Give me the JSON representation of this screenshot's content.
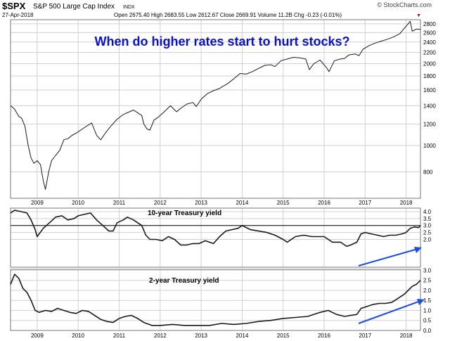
{
  "header": {
    "symbol": "$SPX",
    "name": "S&P 500 Large Cap Index",
    "exchange": "INDX",
    "date": "27-Apr-2018",
    "quote": "Open 2675.40  High 2683.55  Low 2612.67  Close 2669.91  Volume 11.2B  Chg -0.23 (-0.01%)",
    "quote_arrow": "▼",
    "watermark": "© StockCharts.com"
  },
  "colors": {
    "price": "#1a1a1a",
    "annotation": "#0a10c8",
    "arrow": "#1f4fd8",
    "grid": "#d0d0d0",
    "border": "#777777"
  },
  "chart_data": [
    {
      "type": "line",
      "annotation": "When do higher rates start to hurt stocks?",
      "y_scale": "log",
      "ylim": [
        640,
        2900
      ],
      "xlim": [
        2008.35,
        2018.35
      ],
      "y_ticks": [
        800,
        1000,
        1200,
        1400,
        1600,
        1800,
        2000,
        2200,
        2400,
        2600,
        2800
      ],
      "x_ticks": [
        "2009",
        "2010",
        "2011",
        "2012",
        "2013",
        "2014",
        "2015",
        "2016",
        "2017",
        "2018"
      ],
      "grid": true,
      "series": [
        {
          "x": [
            2008.35,
            2008.45,
            2008.55,
            2008.62,
            2008.7,
            2008.78,
            2008.85,
            2008.92,
            2009.0,
            2009.08,
            2009.15,
            2009.2,
            2009.28,
            2009.35,
            2009.45,
            2009.55,
            2009.65,
            2009.75,
            2009.85,
            2009.95,
            2010.1,
            2010.25,
            2010.33,
            2010.45,
            2010.55,
            2010.68,
            2010.8,
            2010.95,
            2011.1,
            2011.25,
            2011.35,
            2011.45,
            2011.55,
            2011.6,
            2011.68,
            2011.75,
            2011.85,
            2011.95,
            2012.1,
            2012.25,
            2012.4,
            2012.5,
            2012.65,
            2012.8,
            2012.88,
            2013.0,
            2013.15,
            2013.3,
            2013.45,
            2013.5,
            2013.65,
            2013.8,
            2013.95,
            2014.1,
            2014.25,
            2014.4,
            2014.55,
            2014.7,
            2014.8,
            2014.95,
            2015.1,
            2015.25,
            2015.4,
            2015.55,
            2015.64,
            2015.75,
            2015.9,
            2016.05,
            2016.12,
            2016.25,
            2016.4,
            2016.5,
            2016.6,
            2016.75,
            2016.85,
            2016.95,
            2017.1,
            2017.25,
            2017.4,
            2017.55,
            2017.7,
            2017.85,
            2017.95,
            2018.05,
            2018.1,
            2018.15,
            2018.25,
            2018.35
          ],
          "values": [
            1400,
            1360,
            1280,
            1260,
            1180,
            1000,
            900,
            860,
            880,
            850,
            740,
            690,
            800,
            880,
            920,
            960,
            1050,
            1060,
            1090,
            1110,
            1150,
            1190,
            1210,
            1090,
            1050,
            1120,
            1180,
            1250,
            1300,
            1330,
            1350,
            1320,
            1290,
            1200,
            1150,
            1140,
            1240,
            1270,
            1330,
            1400,
            1330,
            1370,
            1420,
            1440,
            1390,
            1480,
            1550,
            1590,
            1620,
            1640,
            1690,
            1760,
            1840,
            1830,
            1870,
            1920,
            1970,
            1980,
            1950,
            2050,
            2080,
            2110,
            2100,
            2080,
            1900,
            2000,
            2060,
            1940,
            1870,
            2050,
            2080,
            2090,
            2150,
            2170,
            2140,
            2260,
            2330,
            2380,
            2420,
            2460,
            2510,
            2580,
            2690,
            2800,
            2860,
            2630,
            2680,
            2670
          ]
        }
      ]
    },
    {
      "type": "line",
      "title": "10-year Treasury yield",
      "ylim": [
        0,
        4.25
      ],
      "xlim": [
        2008.35,
        2018.35
      ],
      "y_ticks": [
        2.0,
        2.5,
        3.0,
        3.5,
        4.0
      ],
      "reference_line": 3.0,
      "grid": true,
      "series": [
        {
          "x": [
            2008.35,
            2008.45,
            2008.6,
            2008.75,
            2008.85,
            2008.95,
            2009.0,
            2009.15,
            2009.3,
            2009.45,
            2009.6,
            2009.75,
            2009.9,
            2010.0,
            2010.15,
            2010.3,
            2010.45,
            2010.6,
            2010.75,
            2010.85,
            2010.95,
            2011.1,
            2011.2,
            2011.35,
            2011.45,
            2011.55,
            2011.65,
            2011.75,
            2011.9,
            2012.05,
            2012.2,
            2012.35,
            2012.5,
            2012.65,
            2012.8,
            2012.95,
            2013.1,
            2013.3,
            2013.45,
            2013.6,
            2013.75,
            2013.9,
            2014.0,
            2014.2,
            2014.4,
            2014.6,
            2014.8,
            2015.0,
            2015.1,
            2015.3,
            2015.5,
            2015.7,
            2015.9,
            2016.0,
            2016.2,
            2016.4,
            2016.55,
            2016.65,
            2016.8,
            2016.9,
            2017.0,
            2017.15,
            2017.3,
            2017.45,
            2017.6,
            2017.75,
            2017.9,
            2018.0,
            2018.1,
            2018.2,
            2018.3,
            2018.35
          ],
          "values": [
            3.9,
            4.1,
            4.0,
            3.9,
            3.4,
            2.7,
            2.2,
            2.8,
            3.2,
            3.6,
            3.7,
            3.4,
            3.5,
            3.7,
            3.8,
            3.9,
            3.4,
            3.0,
            2.6,
            2.6,
            3.2,
            3.4,
            3.6,
            3.4,
            3.2,
            3.0,
            2.3,
            2.0,
            2.0,
            1.9,
            2.2,
            2.0,
            1.6,
            1.6,
            1.7,
            1.7,
            1.9,
            1.7,
            2.2,
            2.6,
            2.7,
            2.8,
            3.0,
            2.7,
            2.6,
            2.5,
            2.3,
            2.0,
            1.8,
            2.2,
            2.3,
            2.2,
            2.2,
            2.2,
            1.8,
            1.8,
            1.5,
            1.6,
            1.8,
            2.4,
            2.5,
            2.4,
            2.3,
            2.2,
            2.3,
            2.3,
            2.4,
            2.5,
            2.8,
            2.9,
            2.85,
            3.0
          ]
        }
      ]
    },
    {
      "type": "line",
      "title": "2-year Treasury yield",
      "ylim": [
        0,
        3.05
      ],
      "xlim": [
        2008.35,
        2018.35
      ],
      "y_ticks": [
        0.0,
        0.5,
        1.0,
        1.5,
        2.0,
        2.5,
        3.0
      ],
      "grid": true,
      "series": [
        {
          "x": [
            2008.35,
            2008.45,
            2008.55,
            2008.65,
            2008.75,
            2008.85,
            2008.95,
            2009.05,
            2009.2,
            2009.35,
            2009.5,
            2009.65,
            2009.8,
            2009.95,
            2010.1,
            2010.25,
            2010.4,
            2010.55,
            2010.7,
            2010.85,
            2011.0,
            2011.15,
            2011.3,
            2011.45,
            2011.6,
            2011.8,
            2012.0,
            2012.3,
            2012.6,
            2012.9,
            2013.2,
            2013.5,
            2013.8,
            2014.1,
            2014.4,
            2014.7,
            2015.0,
            2015.3,
            2015.6,
            2015.9,
            2016.1,
            2016.3,
            2016.5,
            2016.65,
            2016.8,
            2016.9,
            2017.05,
            2017.2,
            2017.35,
            2017.5,
            2017.65,
            2017.8,
            2017.95,
            2018.05,
            2018.15,
            2018.25,
            2018.35
          ],
          "values": [
            2.3,
            2.8,
            2.6,
            2.1,
            1.9,
            1.5,
            1.0,
            0.9,
            1.0,
            0.95,
            1.1,
            1.0,
            0.9,
            0.85,
            1.0,
            0.95,
            0.75,
            0.55,
            0.45,
            0.4,
            0.6,
            0.7,
            0.75,
            0.6,
            0.4,
            0.25,
            0.25,
            0.3,
            0.25,
            0.25,
            0.25,
            0.35,
            0.3,
            0.35,
            0.45,
            0.5,
            0.6,
            0.65,
            0.7,
            0.9,
            1.0,
            0.8,
            0.7,
            0.75,
            0.8,
            1.1,
            1.2,
            1.3,
            1.35,
            1.35,
            1.4,
            1.6,
            1.8,
            2.0,
            2.2,
            2.3,
            2.5
          ]
        }
      ]
    }
  ]
}
